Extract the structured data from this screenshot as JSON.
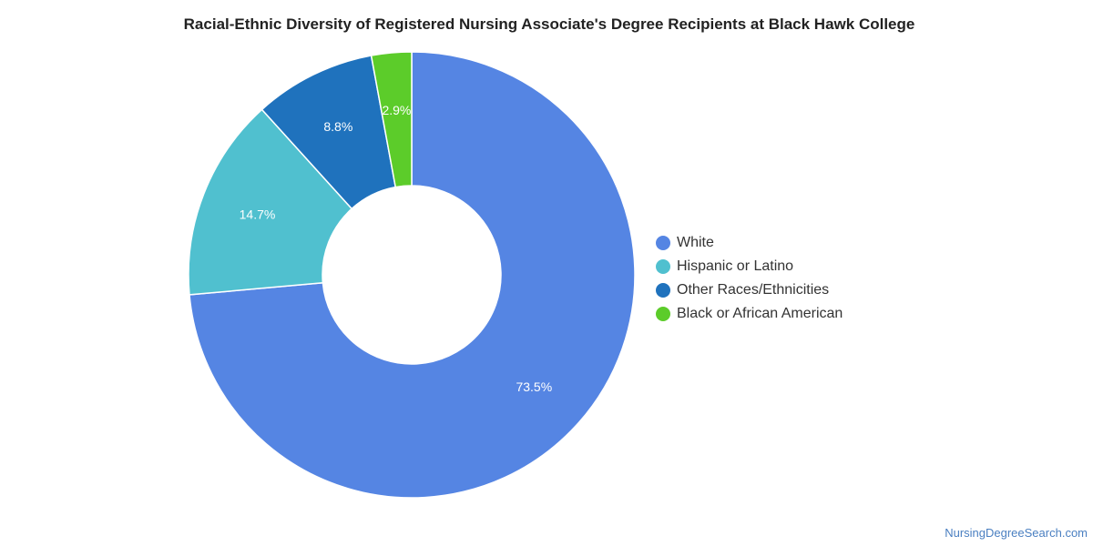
{
  "chart_data": {
    "type": "pie",
    "variant": "donut",
    "title": "Racial-Ethnic Diversity of Registered Nursing Associate's Degree Recipients at Black Hawk College",
    "categories": [
      "White",
      "Hispanic or Latino",
      "Other Races/Ethnicities",
      "Black or African American"
    ],
    "values": [
      73.5,
      14.7,
      8.8,
      2.9
    ],
    "value_labels": [
      "73.5%",
      "14.7%",
      "8.8%",
      "2.9%"
    ],
    "colors": [
      "#5585e3",
      "#50c0cf",
      "#1f72bd",
      "#5ccc2a"
    ],
    "legend": "right"
  },
  "footer": {
    "credit": "NursingDegreeSearch.com"
  }
}
